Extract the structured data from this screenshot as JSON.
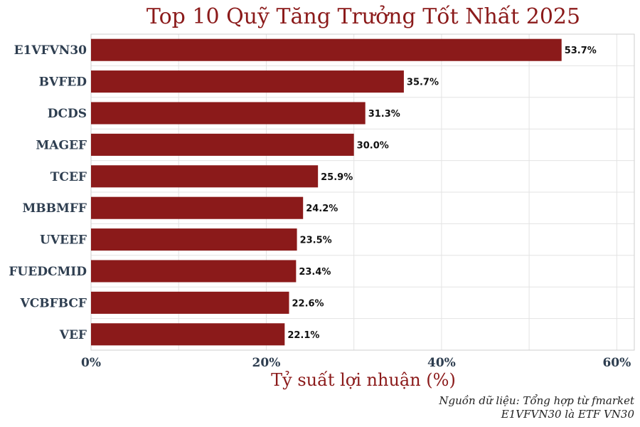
{
  "chart_data": {
    "type": "bar",
    "orientation": "horizontal",
    "title": "Top 10 Quỹ Tăng Trưởng Tốt Nhất 2025",
    "xlabel": "Tỷ suất lợi nhuận (%)",
    "ylabel": "",
    "categories": [
      "E1VFVN30",
      "BVFED",
      "DCDS",
      "MAGEF",
      "TCEF",
      "MBBMFF",
      "UVEEF",
      "FUEDCMID",
      "VCBFBCF",
      "VEF"
    ],
    "values": [
      53.7,
      35.7,
      31.3,
      30.0,
      25.9,
      24.2,
      23.5,
      23.4,
      22.6,
      22.1
    ],
    "value_labels": [
      "53.7%",
      "35.7%",
      "31.3%",
      "30.0%",
      "25.9%",
      "24.2%",
      "23.5%",
      "23.4%",
      "22.6%",
      "22.1%"
    ],
    "xlim": [
      0,
      62
    ],
    "xticks": [
      0,
      20,
      40,
      60
    ],
    "xtick_labels": [
      "0%",
      "20%",
      "40%",
      "60%"
    ],
    "grid": true,
    "bar_color": "#8b1a1a",
    "title_color": "#8b1a1a",
    "notes": [
      "Nguồn dữ liệu: Tổng hợp từ fmarket",
      "E1VFVN30 là ETF VN30"
    ]
  }
}
